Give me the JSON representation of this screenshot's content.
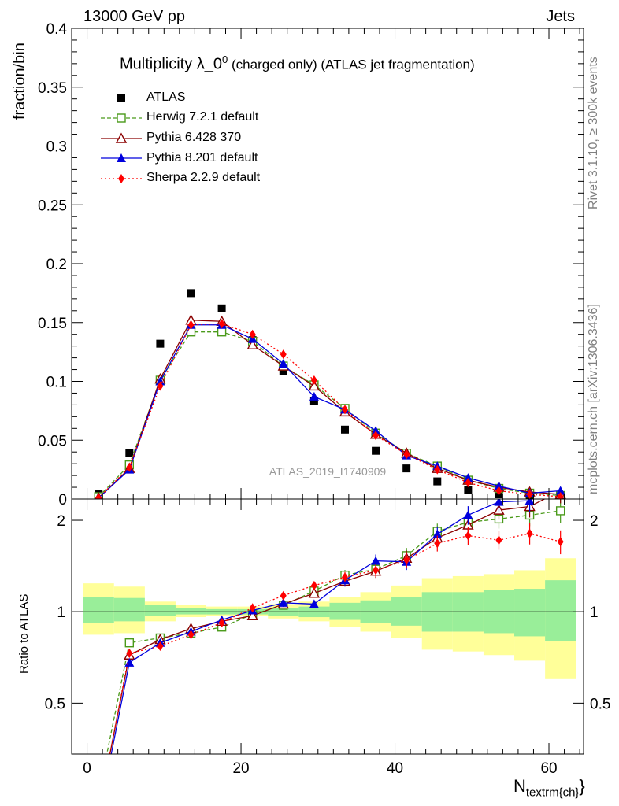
{
  "header": {
    "left": "13000 GeV pp",
    "right": "Jets"
  },
  "side_labels": {
    "rivet": "Rivet 3.1.10, ≥ 300k events",
    "mcplots": "mcplots.cern.ch [arXiv:1306.3436]"
  },
  "chart_data": {
    "type": "scatter",
    "title_main": "Multiplicity λ_0",
    "title_sup": "0",
    "title_rest": " (charged only) (ATLAS jet fragmentation)",
    "watermark": "ATLAS_2019_I1740909",
    "xlabel_main": "N",
    "xlabel_sub": "textrm{ch}",
    "xlabel_close": "}",
    "ylabel_top": "fraction/bin",
    "ylabel_bottom": "Ratio to ATLAS",
    "x": [
      1.5,
      5.5,
      9.5,
      13.5,
      17.5,
      21.5,
      25.5,
      29.5,
      33.5,
      37.5,
      41.5,
      45.5,
      49.5,
      53.5,
      57.5,
      61.5
    ],
    "top_panel": {
      "xlim": [
        -2,
        64.5
      ],
      "ylim": [
        0,
        0.4
      ],
      "yticks": [
        "0",
        "0.05",
        "0.1",
        "0.15",
        "0.2",
        "0.25",
        "0.3",
        "0.35",
        "0.4"
      ],
      "ytick_values": [
        0,
        0.05,
        0.1,
        0.15,
        0.2,
        0.25,
        0.3,
        0.35,
        0.4
      ]
    },
    "bottom_panel": {
      "ylim": [
        0.34,
        2.35
      ],
      "yticks": [
        "0.5",
        "1",
        "2"
      ],
      "ytick_values": [
        0.5,
        1,
        2
      ]
    },
    "xticks": [
      "0",
      "20",
      "40",
      "60"
    ],
    "xtick_values": [
      0,
      20,
      40,
      60
    ],
    "legend_placement": "top-left",
    "series": [
      {
        "name": "ATLAS",
        "color": "#000000",
        "marker": "square-filled",
        "values": [
          0.004,
          0.039,
          0.132,
          0.175,
          0.162,
          0.135,
          0.109,
          0.083,
          0.059,
          0.041,
          0.026,
          0.015,
          0.008,
          0.004,
          0.002,
          0.001
        ]
      },
      {
        "name": "Herwig 7.2.1 default",
        "color": "#4a9a1a",
        "marker": "square-open",
        "dash": "5,3",
        "values": [
          0.002,
          0.029,
          0.101,
          0.142,
          0.142,
          0.134,
          0.113,
          0.097,
          0.077,
          0.056,
          0.039,
          0.028,
          0.016,
          0.009,
          0.005,
          0.003
        ],
        "ratio": [
          0.25,
          0.79,
          0.82,
          0.85,
          0.89,
          0.98,
          1.05,
          1.17,
          1.32,
          1.38,
          1.53,
          1.84,
          1.97,
          2.02,
          2.08,
          2.15
        ]
      },
      {
        "name": "Pythia 6.428 370",
        "color": "#8b0000",
        "marker": "triangle-open",
        "dash": "",
        "values": [
          0.001,
          0.026,
          0.102,
          0.152,
          0.151,
          0.131,
          0.113,
          0.096,
          0.074,
          0.055,
          0.039,
          0.026,
          0.016,
          0.01,
          0.006,
          0.004
        ],
        "ratio": [
          0.22,
          0.72,
          0.81,
          0.88,
          0.93,
          0.97,
          1.06,
          1.15,
          1.26,
          1.36,
          1.5,
          1.75,
          1.93,
          2.16,
          2.22,
          2.5
        ]
      },
      {
        "name": "Pythia 8.201 default",
        "color": "#0000dd",
        "marker": "triangle-filled",
        "dash": "",
        "values": [
          0.001,
          0.025,
          0.1,
          0.148,
          0.148,
          0.136,
          0.115,
          0.087,
          0.076,
          0.058,
          0.037,
          0.028,
          0.018,
          0.011,
          0.005,
          0.007
        ],
        "ratio": [
          0.21,
          0.68,
          0.79,
          0.86,
          0.94,
          1.01,
          1.07,
          1.06,
          1.27,
          1.47,
          1.46,
          1.8,
          2.08,
          2.3,
          2.32,
          2.7
        ]
      },
      {
        "name": "Sherpa 2.2.9 default",
        "color": "#ff0000",
        "marker": "diamond-filled",
        "dash": "2,3",
        "values": [
          0.001,
          0.027,
          0.096,
          0.148,
          0.149,
          0.14,
          0.123,
          0.101,
          0.076,
          0.054,
          0.038,
          0.025,
          0.014,
          0.007,
          0.004,
          0.002
        ],
        "ratio": [
          0.22,
          0.73,
          0.77,
          0.84,
          0.92,
          1.03,
          1.13,
          1.22,
          1.3,
          1.37,
          1.48,
          1.68,
          1.78,
          1.72,
          1.81,
          1.7
        ]
      }
    ],
    "ratio_errors": [
      0.02,
      0.02,
      0.02,
      0.02,
      0.02,
      0.02,
      0.03,
      0.03,
      0.04,
      0.05,
      0.06,
      0.06,
      0.07,
      0.07,
      0.08,
      0.09
    ],
    "band_inner": {
      "lo": [
        0.92,
        0.93,
        0.97,
        0.98,
        0.98,
        0.98,
        0.97,
        0.96,
        0.94,
        0.92,
        0.9,
        0.86,
        0.86,
        0.85,
        0.83,
        0.8
      ],
      "hi": [
        1.12,
        1.11,
        1.05,
        1.03,
        1.02,
        1.02,
        1.03,
        1.04,
        1.07,
        1.09,
        1.12,
        1.16,
        1.16,
        1.18,
        1.19,
        1.27
      ],
      "color": "#99ee99"
    },
    "band_outer": {
      "lo": [
        0.84,
        0.85,
        0.93,
        0.96,
        0.97,
        0.97,
        0.95,
        0.93,
        0.89,
        0.86,
        0.82,
        0.75,
        0.74,
        0.72,
        0.69,
        0.6
      ],
      "hi": [
        1.24,
        1.21,
        1.08,
        1.05,
        1.04,
        1.04,
        1.06,
        1.08,
        1.12,
        1.16,
        1.22,
        1.29,
        1.31,
        1.33,
        1.37,
        1.5
      ],
      "color": "#ffff99"
    }
  }
}
